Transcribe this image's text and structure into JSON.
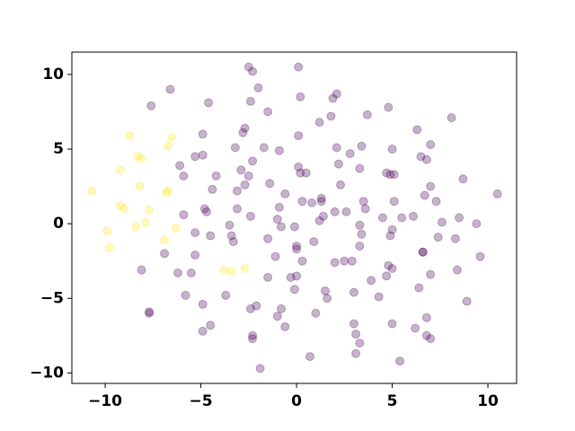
{
  "chart_data": {
    "type": "scatter",
    "xlim": [
      -11.74,
      11.5
    ],
    "ylim": [
      -10.7,
      11.5
    ],
    "xticks": [
      {
        "value": -10,
        "label": "−10"
      },
      {
        "value": -5,
        "label": "−5"
      },
      0,
      5,
      10
    ],
    "yticks": [
      {
        "value": -10,
        "label": "−10"
      },
      {
        "value": -5,
        "label": "−5"
      },
      0,
      5,
      10
    ],
    "alpha": 0.3,
    "series": [
      {
        "color": "#440154",
        "x": [
          -7.6,
          -6.6,
          -4.6,
          -2.5,
          -2.3,
          -2.0,
          0.1,
          0.2,
          -2.7,
          -2.8,
          -2.4,
          -1.5,
          -3.2,
          -4.9,
          -4.9,
          -5.3,
          -6.1,
          -5.9,
          -4.2,
          -4.4,
          -4.8,
          -4.7,
          -5.9,
          -5.3,
          -4.5,
          -3.5,
          -3.4,
          -3.3,
          -3.1,
          -3.1,
          -2.9,
          -2.7,
          -2.4,
          -2.5,
          -2.3,
          -1.7,
          -0.9,
          -1.4,
          -0.9,
          -1.0,
          -0.6,
          -0.8,
          -0.1,
          0.0,
          0.0,
          0.1,
          0.1,
          0.2,
          0.5,
          0.3,
          0.8,
          1.2,
          1.3,
          1.4,
          0.9,
          0.3,
          0.0,
          -0.3,
          -1.5,
          -1.5,
          -1.1,
          -5.3,
          -5.5,
          -6.2,
          -5.8,
          -6.9,
          -8.1,
          -7.7,
          -7.7,
          -4.9,
          -4.9,
          -4.5,
          -3.7,
          -2.4,
          -2.1,
          -2.3,
          -2.3,
          -1.9,
          -0.8,
          -1.0,
          -0.6,
          -0.1,
          1.0,
          0.7,
          1.5,
          1.6,
          2.0,
          2.5,
          2.9,
          3.0,
          3.0,
          3.1,
          3.3,
          3.1,
          3.9,
          4.3,
          4.7,
          4.8,
          5.0,
          5.0,
          5.4,
          6.4,
          6.2,
          6.8,
          7.0,
          6.8,
          7.0,
          6.6,
          6.6,
          7.4,
          8.3,
          8.4,
          8.9,
          9.6,
          7.6,
          8.5,
          9.4,
          10.5,
          8.7,
          7.3,
          7.0,
          6.7,
          6.1,
          5.5,
          4.9,
          5.0,
          4.5,
          5.1,
          3.6,
          3.5,
          3.3,
          3.4,
          3.3,
          2.6,
          2.0,
          1.3,
          2.3,
          2.2,
          2.8,
          3.3,
          3.4,
          2.1,
          1.8,
          2.1,
          1.9,
          1.2,
          3.7,
          4.8,
          5.0,
          4.7,
          4.9,
          5.1,
          6.3,
          6.5,
          6.8,
          7.0,
          8.1
        ],
        "values": [
          7.9,
          9.0,
          8.1,
          10.5,
          10.2,
          9.1,
          10.5,
          8.5,
          6.4,
          6.1,
          8.2,
          7.5,
          5.1,
          6.0,
          4.6,
          4.5,
          3.9,
          3.2,
          3.2,
          2.3,
          1.0,
          0.8,
          0.6,
          -0.6,
          -0.8,
          -0.1,
          -0.8,
          -1.2,
          1.0,
          2.2,
          3.6,
          2.6,
          0.5,
          3.2,
          4.2,
          5.1,
          4.9,
          2.7,
          1.1,
          0.3,
          2.0,
          -0.2,
          -0.2,
          -1.5,
          -1.7,
          5.9,
          3.8,
          3.4,
          3.4,
          1.5,
          1.4,
          0.2,
          1.5,
          0.5,
          -1.2,
          -2.5,
          -3.5,
          -3.6,
          -1.0,
          -3.6,
          -2.2,
          -2.1,
          -3.3,
          -3.3,
          -4.8,
          -2.0,
          -3.1,
          -5.9,
          -6.0,
          -5.4,
          -7.2,
          -6.8,
          -4.8,
          -5.7,
          -5.5,
          -7.5,
          -7.7,
          -9.7,
          -5.7,
          -6.2,
          -6.9,
          -4.4,
          -6.0,
          -8.9,
          -4.5,
          -5.0,
          -2.6,
          -2.5,
          -2.5,
          -4.6,
          -6.7,
          -7.4,
          -8.0,
          -8.7,
          -3.8,
          -4.9,
          -3.5,
          -2.8,
          -3.0,
          -6.7,
          -9.2,
          -4.3,
          -7.0,
          -6.3,
          -3.4,
          -7.5,
          -7.7,
          -1.9,
          -1.9,
          -0.9,
          -1.0,
          -3.1,
          -5.2,
          -2.2,
          0.1,
          0.4,
          0.0,
          2.0,
          3.0,
          1.5,
          2.5,
          1.9,
          0.5,
          0.4,
          -0.8,
          -0.4,
          0.4,
          1.5,
          1.0,
          1.5,
          -0.1,
          -0.7,
          -1.5,
          0.8,
          0.8,
          1.7,
          2.6,
          4.0,
          4.7,
          3.7,
          5.2,
          5.1,
          7.2,
          8.7,
          8.4,
          6.8,
          7.3,
          7.8,
          5.0,
          3.4,
          3.3,
          3.3,
          6.3,
          4.5,
          4.3,
          5.3,
          7.1
        ]
      },
      {
        "color": "#fde725",
        "x": [
          -10.7,
          -9.9,
          -9.8,
          -9.2,
          -9.2,
          -9.0,
          -8.7,
          -8.4,
          -8.2,
          -8.3,
          -8.1,
          -7.9,
          -7.7,
          -6.9,
          -6.8,
          -6.7,
          -6.7,
          -6.5,
          -6.3,
          -3.8,
          -3.4,
          -2.7
        ],
        "values": [
          2.2,
          -0.5,
          -1.6,
          3.6,
          1.2,
          1.0,
          5.9,
          -0.2,
          2.5,
          4.5,
          4.4,
          0.1,
          0.9,
          -1.1,
          2.1,
          2.2,
          5.2,
          5.8,
          -0.3,
          -3.1,
          -3.2,
          -3.0
        ]
      }
    ]
  }
}
